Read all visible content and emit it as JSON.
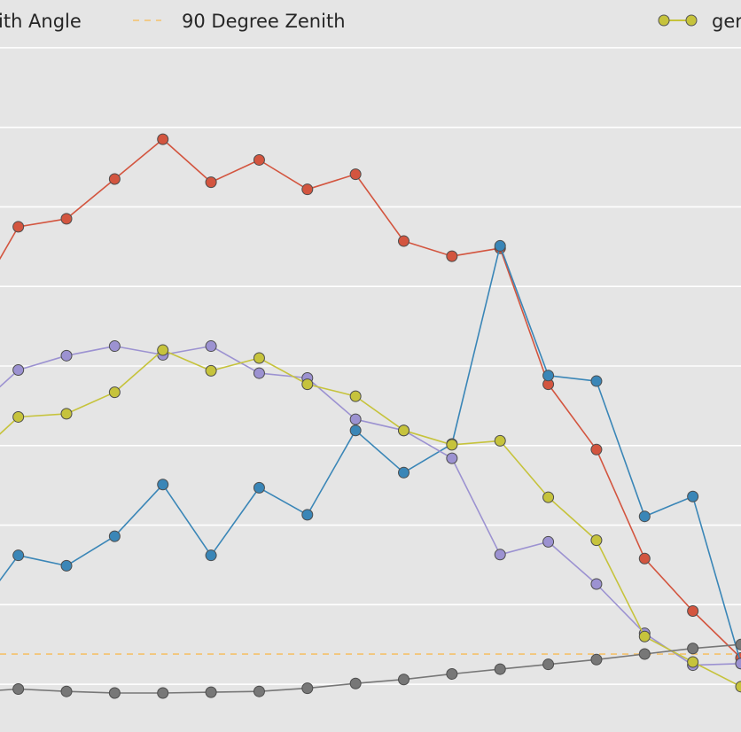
{
  "chart_data": {
    "type": "line",
    "x": [
      -1,
      0,
      1,
      2,
      3,
      4,
      5,
      6,
      7,
      8,
      9,
      10,
      11,
      12,
      13,
      14,
      15
    ],
    "xlim": [
      -0.38,
      15.0
    ],
    "ylim": [
      0.04,
      0.96
    ],
    "grid": true,
    "legend_position": "top",
    "legend_entries": [
      {
        "label": "ith Angle",
        "style": "line"
      },
      {
        "label": "90 Degree Zenith",
        "style": "dashed",
        "color": "#f5c26b"
      },
      {
        "label": "ger",
        "style": "line-marker",
        "color": "#c6c33c"
      }
    ],
    "reference_line": {
      "label": "90 Degree Zenith",
      "y": 0.138,
      "color": "#f5c26b"
    },
    "series": [
      {
        "key": "red",
        "color": "#d3553f",
        "values": [
          0.57,
          0.675,
          0.685,
          0.735,
          0.785,
          0.731,
          0.759,
          0.722,
          0.741,
          0.657,
          0.638,
          0.648,
          0.477,
          0.395,
          0.258,
          0.192,
          0.133
        ]
      },
      {
        "key": "blue",
        "color": "#3a86b7",
        "values": [
          0.18,
          0.262,
          0.249,
          0.286,
          0.351,
          0.262,
          0.347,
          0.313,
          0.419,
          0.366,
          0.402,
          0.651,
          0.488,
          0.481,
          0.311,
          0.336,
          0.126
        ]
      },
      {
        "key": "purple",
        "color": "#9c92d1",
        "values": [
          0.44,
          0.495,
          0.513,
          0.525,
          0.514,
          0.525,
          0.491,
          0.485,
          0.433,
          0.419,
          0.384,
          0.263,
          0.279,
          0.226,
          0.164,
          0.124,
          0.126
        ]
      },
      {
        "key": "olive",
        "color": "#c6c33c",
        "values": [
          0.38,
          0.436,
          0.44,
          0.467,
          0.52,
          0.494,
          0.51,
          0.477,
          0.462,
          0.419,
          0.401,
          0.406,
          0.335,
          0.281,
          0.16,
          0.128,
          0.097
        ]
      },
      {
        "key": "gray",
        "color": "#777777",
        "values": [
          0.09,
          0.094,
          0.091,
          0.089,
          0.089,
          0.09,
          0.091,
          0.095,
          0.101,
          0.106,
          0.113,
          0.119,
          0.125,
          0.131,
          0.138,
          0.145,
          0.15
        ]
      }
    ]
  }
}
